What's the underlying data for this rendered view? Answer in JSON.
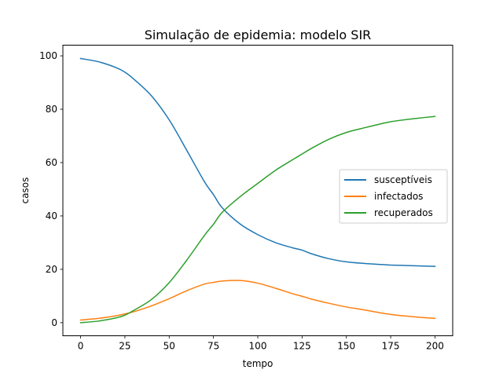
{
  "chart_data": {
    "type": "line",
    "title": "Simulação de epidemia: modelo SIR",
    "xlabel": "tempo",
    "ylabel": "casos",
    "xlim": [
      -10,
      210
    ],
    "ylim": [
      -4.9,
      104
    ],
    "xticks": [
      0,
      25,
      50,
      75,
      100,
      125,
      150,
      175,
      200
    ],
    "yticks": [
      0,
      20,
      40,
      60,
      80,
      100
    ],
    "grid": false,
    "legend_position": "center-right",
    "x": [
      0,
      10,
      20,
      25,
      30,
      40,
      50,
      60,
      70,
      75,
      80,
      90,
      100,
      110,
      120,
      125,
      130,
      140,
      150,
      160,
      170,
      175,
      180,
      190,
      200
    ],
    "series": [
      {
        "name": "susceptíveis",
        "color": "#1f77b4",
        "values": [
          99.0,
          97.8,
          95.6,
          93.9,
          91.3,
          85.0,
          76.0,
          64.5,
          52.7,
          48.0,
          43.0,
          37.0,
          33.0,
          30.0,
          28.0,
          27.2,
          25.9,
          24.0,
          22.8,
          22.2,
          21.8,
          21.6,
          21.5,
          21.3,
          21.1
        ]
      },
      {
        "name": "infectados",
        "color": "#ff7f0e",
        "values": [
          1.0,
          1.6,
          2.6,
          3.3,
          4.1,
          6.3,
          9.0,
          12.0,
          14.5,
          15.1,
          15.6,
          15.8,
          14.8,
          12.9,
          10.8,
          9.9,
          8.9,
          7.3,
          5.9,
          4.8,
          3.6,
          3.1,
          2.7,
          2.1,
          1.6
        ]
      },
      {
        "name": "recuperados",
        "color": "#2ca02c",
        "values": [
          0.0,
          0.6,
          1.8,
          2.8,
          4.6,
          8.7,
          15.0,
          23.5,
          32.8,
          36.9,
          41.4,
          47.2,
          52.2,
          57.1,
          61.2,
          63.2,
          65.2,
          68.7,
          71.3,
          73.0,
          74.6,
          75.3,
          75.8,
          76.6,
          77.3
        ]
      }
    ]
  }
}
